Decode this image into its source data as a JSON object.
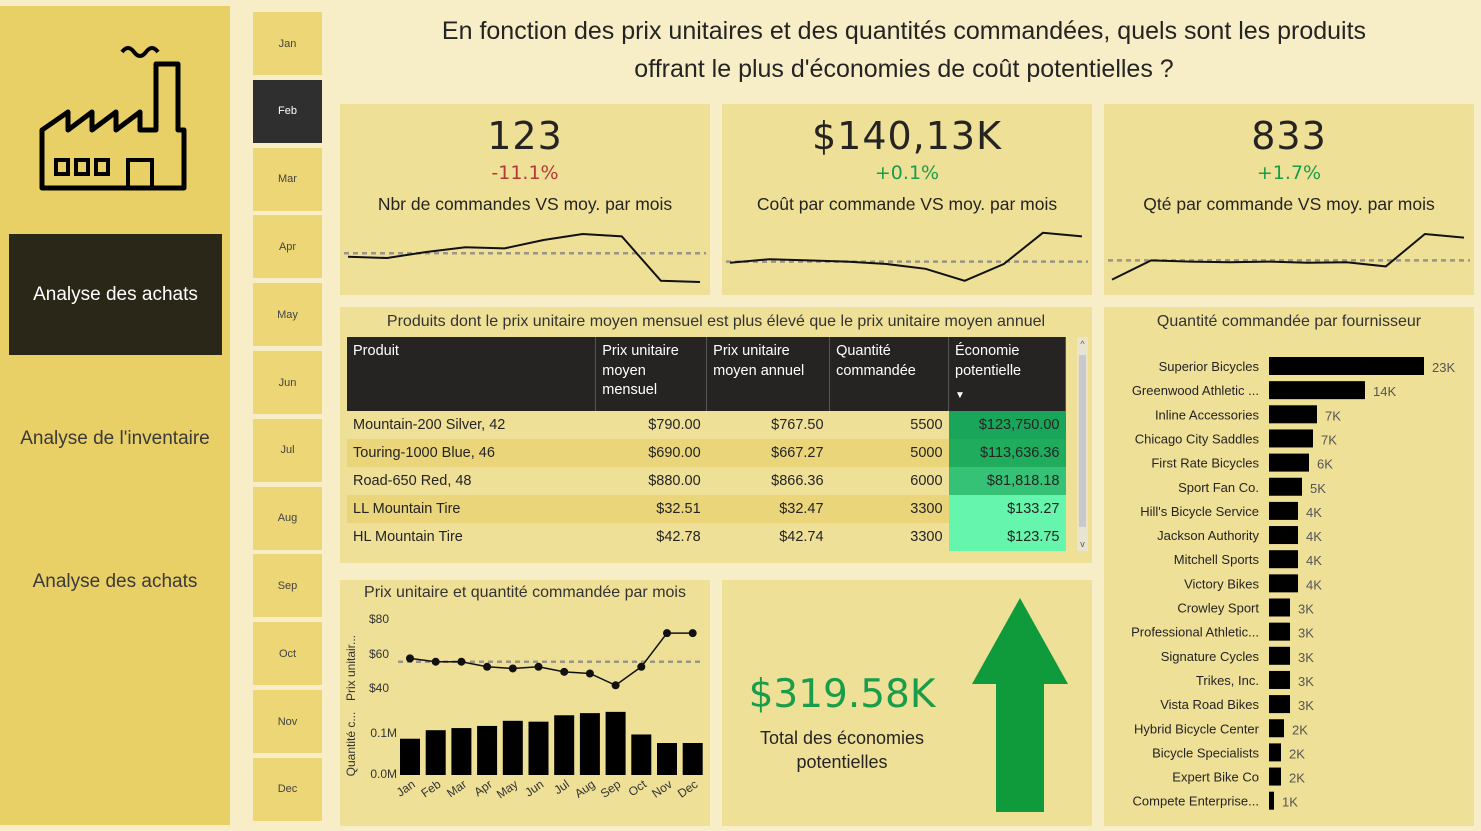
{
  "sidebar": {
    "active_item": "Analyse des achats",
    "items": [
      "Analyse de l'inventaire",
      "Analyse des achats"
    ]
  },
  "months": [
    "Jan",
    "Feb",
    "Mar",
    "Apr",
    "May",
    "Jun",
    "Jul",
    "Aug",
    "Sep",
    "Oct",
    "Nov",
    "Dec"
  ],
  "selected_month": "Feb",
  "headline": {
    "line1": "En fonction des prix unitaires et des quantités commandées, quels sont les produits",
    "line2": "offrant le plus d'économies de coût potentielles ?"
  },
  "kpis": [
    {
      "value": "123",
      "change": "-11.1%",
      "direction": "neg",
      "label": "Nbr de commandes VS moy. par mois",
      "trend": [
        5.2,
        5.0,
        6.0,
        6.8,
        6.6,
        8.0,
        9.0,
        8.6,
        1.2,
        1.0
      ],
      "avg": 5.8
    },
    {
      "value": "$140,13K",
      "change": "+0.1%",
      "direction": "pos",
      "label": "Coût par commande VS moy. par mois",
      "trend": [
        4.2,
        4.8,
        4.6,
        4.4,
        4.0,
        3.2,
        1.2,
        4.0,
        9.2,
        8.6
      ],
      "avg": 4.4
    },
    {
      "value": "833",
      "change": "+1.7%",
      "direction": "pos",
      "label": "Qté par commande VS moy. par mois",
      "trend": [
        1.4,
        4.6,
        4.4,
        4.3,
        4.4,
        4.2,
        4.3,
        3.6,
        9.0,
        8.4
      ],
      "avg": 4.6
    }
  ],
  "colors": {
    "positive": "#1a9d4a",
    "negative": "#b03a3a",
    "bars": "#000000",
    "arrow": "#0f9a3c"
  },
  "product_table": {
    "title": "Produits dont le prix unitaire moyen mensuel est plus élevé que le prix unitaire moyen annuel",
    "headers": [
      "Produit",
      "Prix unitaire moyen mensuel",
      "Prix unitaire moyen annuel",
      "Quantité commandée",
      "Économie potentielle"
    ],
    "rows": [
      {
        "product": "Mountain-200 Silver, 42",
        "monthly": "$790.00",
        "annual": "$767.50",
        "qty": "5500",
        "saving": "$123,750.00",
        "shade": "#1aa65a"
      },
      {
        "product": "Touring-1000 Blue, 46",
        "monthly": "$690.00",
        "annual": "$667.27",
        "qty": "5000",
        "saving": "$113,636.36",
        "shade": "#20ac5d"
      },
      {
        "product": "Road-650 Red, 48",
        "monthly": "$880.00",
        "annual": "$866.36",
        "qty": "6000",
        "saving": "$81,818.18",
        "shade": "#35c276"
      },
      {
        "product": "LL Mountain Tire",
        "monthly": "$32.51",
        "annual": "$32.47",
        "qty": "3300",
        "saving": "$133.27",
        "shade": "#66f5ad"
      },
      {
        "product": "HL Mountain Tire",
        "monthly": "$42.78",
        "annual": "$42.74",
        "qty": "3300",
        "saving": "$123.75",
        "shade": "#66f5ad"
      }
    ]
  },
  "combo_chart": {
    "title": "Prix unitaire et quantité commandée par mois",
    "ylabel_top": "Prix unitair...",
    "ylabel_bottom": "Quantité c...",
    "yticks_top": [
      "$80",
      "$60",
      "$40"
    ],
    "yticks_bottom": [
      "0.1M",
      "0.0M"
    ]
  },
  "savings": {
    "value": "$319.58K",
    "label_line1": "Total des économies",
    "label_line2": "potentielles"
  },
  "supplier_chart": {
    "title": "Quantité commandée par fournisseur"
  },
  "chart_data": [
    {
      "type": "line",
      "title": "Prix unitaire et quantité commandée par mois",
      "categories": [
        "Jan",
        "Feb",
        "Mar",
        "Apr",
        "May",
        "Jun",
        "Jul",
        "Aug",
        "Sep",
        "Oct",
        "Nov",
        "Dec"
      ],
      "ylabel": "Prix unitair...",
      "ylim": [
        30,
        85
      ],
      "series": [
        {
          "name": "Prix unitaire",
          "values": [
            58,
            56,
            56,
            53,
            52,
            53,
            50,
            49,
            42,
            53,
            73,
            73
          ]
        }
      ],
      "reference_line": 56
    },
    {
      "type": "bar",
      "categories": [
        "Jan",
        "Feb",
        "Mar",
        "Apr",
        "May",
        "Jun",
        "Jul",
        "Aug",
        "Sep",
        "Oct",
        "Nov",
        "Dec"
      ],
      "ylabel": "Quantité c...",
      "ylim": [
        0,
        0.15
      ],
      "values": [
        0.085,
        0.105,
        0.11,
        0.115,
        0.127,
        0.125,
        0.14,
        0.145,
        0.148,
        0.095,
        0.075,
        0.075
      ]
    },
    {
      "type": "bar",
      "orientation": "horizontal",
      "title": "Quantité commandée par fournisseur",
      "categories": [
        "Superior Bicycles",
        "Greenwood Athletic ...",
        "Inline Accessories",
        "Chicago City Saddles",
        "First Rate Bicycles",
        "Sport Fan Co.",
        "Hill's Bicycle Service",
        "Jackson Authority",
        "Mitchell Sports",
        "Victory Bikes",
        "Crowley Sport",
        "Professional Athletic...",
        "Signature Cycles",
        "Trikes, Inc.",
        "Vista Road Bikes",
        "Hybrid Bicycle Center",
        "Bicycle Specialists",
        "Expert Bike Co",
        "Compete Enterprise..."
      ],
      "values": [
        23000,
        14000,
        7000,
        7000,
        6000,
        5000,
        4000,
        4000,
        4000,
        4000,
        3000,
        3000,
        3000,
        3000,
        3000,
        2000,
        2000,
        2000,
        1000
      ],
      "labels": [
        "23K",
        "14K",
        "7K",
        "7K",
        "6K",
        "5K",
        "4K",
        "4K",
        "4K",
        "4K",
        "3K",
        "3K",
        "3K",
        "3K",
        "3K",
        "2K",
        "2K",
        "2K",
        "1K"
      ],
      "bar_lengths": [
        155,
        96,
        48,
        44,
        40,
        33,
        29,
        29,
        29,
        29,
        21,
        21,
        21,
        21,
        21,
        15,
        12,
        12,
        5
      ]
    }
  ]
}
